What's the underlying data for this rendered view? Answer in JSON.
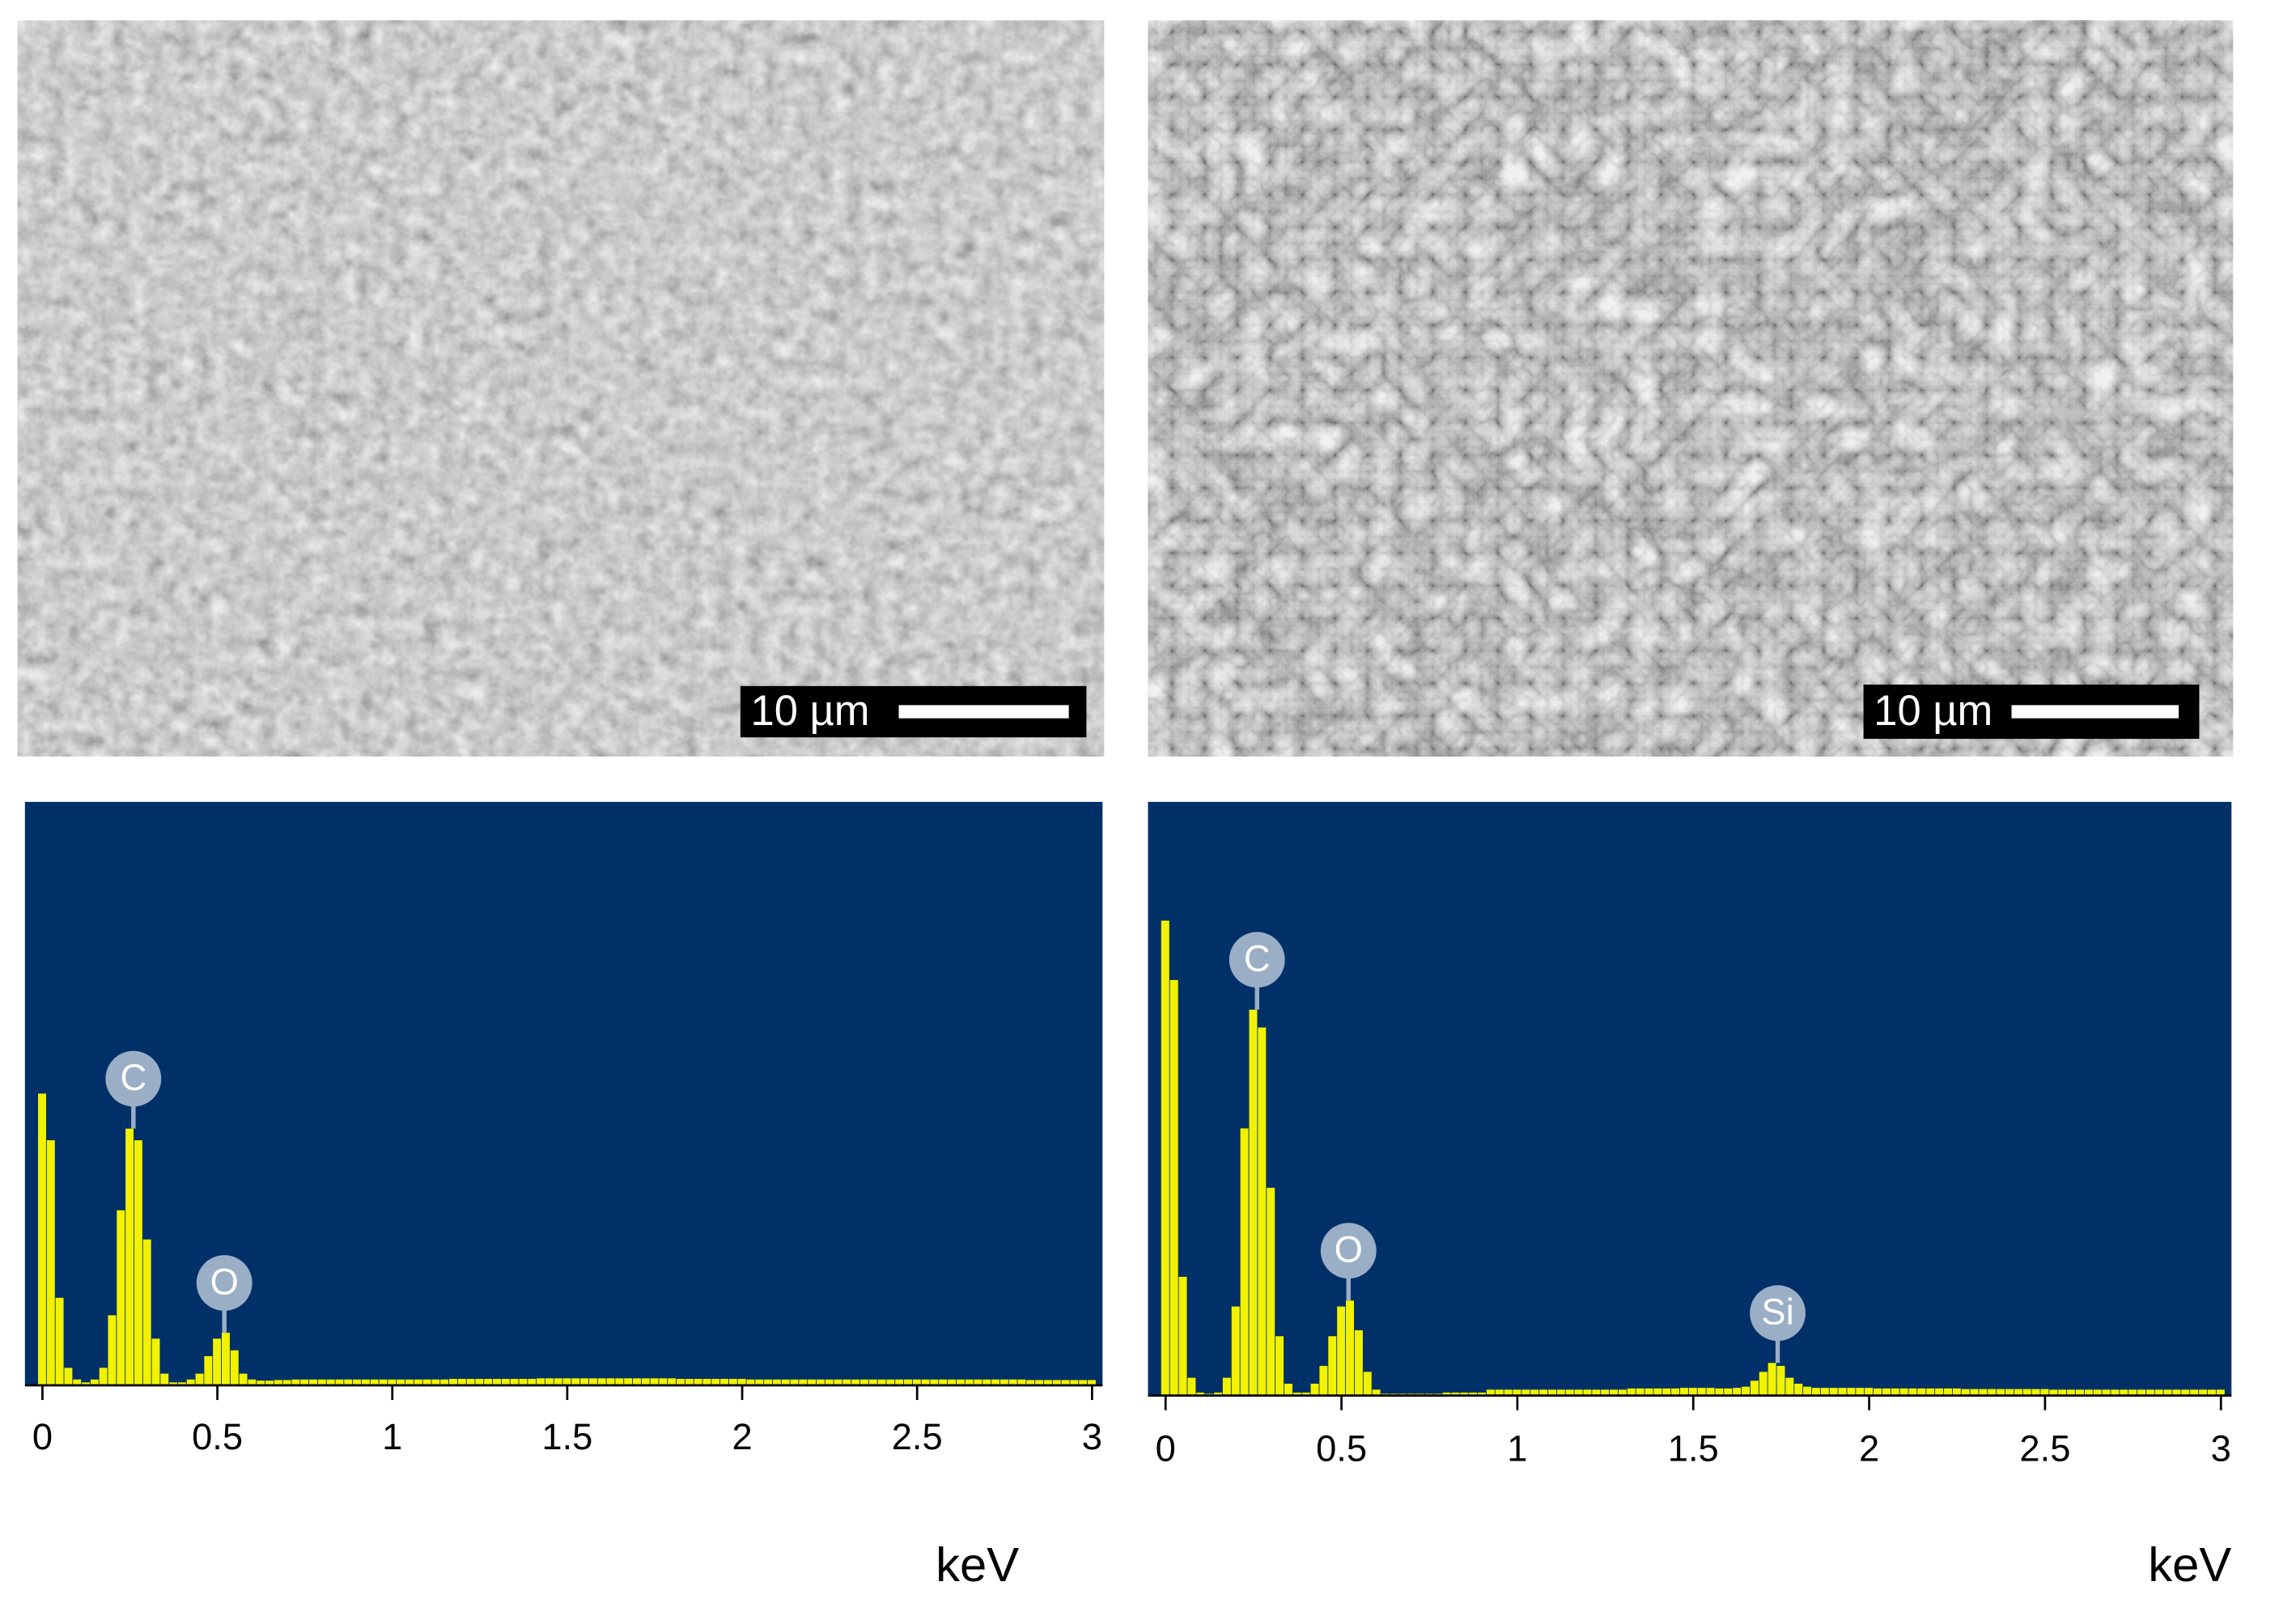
{
  "images": [
    {
      "scale_bar": "10 µm"
    },
    {
      "scale_bar": "10 µm"
    }
  ],
  "chart_data": [
    {
      "type": "bar",
      "x_label": "keV",
      "color": "#f2f200",
      "background": "#003068",
      "xlim": [
        -0.05,
        3.03
      ],
      "xticks": [
        0,
        0.5,
        1,
        1.5,
        2,
        2.5,
        3
      ],
      "ylim": [
        0,
        100
      ],
      "x": [
        0,
        0.025,
        0.05,
        0.075,
        0.1,
        0.125,
        0.15,
        0.175,
        0.2,
        0.225,
        0.25,
        0.275,
        0.3,
        0.325,
        0.35,
        0.375,
        0.4,
        0.425,
        0.45,
        0.475,
        0.5,
        0.525,
        0.55,
        0.575,
        0.6,
        0.625,
        0.65,
        0.675,
        0.7,
        0.725,
        0.75,
        0.775,
        0.8,
        0.825,
        0.85,
        0.875,
        0.9,
        0.925,
        0.95,
        0.975,
        1,
        1.025,
        1.05,
        1.075,
        1.1,
        1.125,
        1.15,
        1.175,
        1.2,
        1.225,
        1.25,
        1.275,
        1.3,
        1.325,
        1.35,
        1.375,
        1.4,
        1.425,
        1.45,
        1.475,
        1.5,
        1.525,
        1.55,
        1.575,
        1.6,
        1.625,
        1.65,
        1.675,
        1.7,
        1.725,
        1.75,
        1.775,
        1.8,
        1.825,
        1.85,
        1.875,
        1.9,
        1.925,
        1.95,
        1.975,
        2,
        2.025,
        2.05,
        2.075,
        2.1,
        2.125,
        2.15,
        2.175,
        2.2,
        2.225,
        2.25,
        2.275,
        2.3,
        2.325,
        2.35,
        2.375,
        2.4,
        2.425,
        2.45,
        2.475,
        2.5,
        2.525,
        2.55,
        2.575,
        2.6,
        2.625,
        2.65,
        2.675,
        2.7,
        2.725,
        2.75,
        2.775,
        2.8,
        2.825,
        2.85,
        2.875,
        2.9,
        2.925,
        2.95,
        2.975,
        3
      ],
      "values": [
        50,
        42,
        15,
        3,
        1,
        0.5,
        1,
        3,
        12,
        30,
        44,
        42,
        25,
        8,
        2,
        0.5,
        0.5,
        1,
        2,
        5,
        8,
        9,
        6,
        2,
        1,
        0.8,
        0.8,
        0.9,
        0.9,
        1,
        1,
        1,
        1,
        1,
        1,
        1,
        1,
        1,
        1,
        1,
        1,
        1,
        1,
        1,
        1,
        1,
        1,
        1.1,
        1.1,
        1.1,
        1.1,
        1.1,
        1.1,
        1.1,
        1.1,
        1.1,
        1.1,
        1.2,
        1.2,
        1.2,
        1.2,
        1.2,
        1.2,
        1.2,
        1.2,
        1.2,
        1.2,
        1.2,
        1.2,
        1.2,
        1.2,
        1.2,
        1.2,
        1.1,
        1.1,
        1.1,
        1.1,
        1.1,
        1.1,
        1.1,
        1.1,
        1,
        1,
        1,
        1,
        1,
        1,
        1,
        1,
        1,
        1,
        1,
        1,
        1,
        1,
        1,
        1,
        1,
        1,
        1,
        1,
        1,
        1,
        1,
        1,
        1,
        1,
        1,
        1,
        1,
        1,
        1,
        1,
        0.9,
        0.9,
        0.9,
        0.9,
        0.9,
        0.9,
        0.9,
        0.9
      ],
      "annotations": [
        {
          "text": "C",
          "x": 0.26
        },
        {
          "text": "O",
          "x": 0.52
        }
      ]
    },
    {
      "type": "bar",
      "x_label": "keV",
      "color": "#f2f200",
      "background": "#003068",
      "xlim": [
        -0.05,
        3.03
      ],
      "xticks": [
        0,
        0.5,
        1,
        1.5,
        2,
        2.5,
        3
      ],
      "ylim": [
        0,
        100
      ],
      "x": [
        0,
        0.025,
        0.05,
        0.075,
        0.1,
        0.125,
        0.15,
        0.175,
        0.2,
        0.225,
        0.25,
        0.275,
        0.3,
        0.325,
        0.35,
        0.375,
        0.4,
        0.425,
        0.45,
        0.475,
        0.5,
        0.525,
        0.55,
        0.575,
        0.6,
        0.625,
        0.65,
        0.675,
        0.7,
        0.725,
        0.75,
        0.775,
        0.8,
        0.825,
        0.85,
        0.875,
        0.9,
        0.925,
        0.95,
        0.975,
        1,
        1.025,
        1.05,
        1.075,
        1.1,
        1.125,
        1.15,
        1.175,
        1.2,
        1.225,
        1.25,
        1.275,
        1.3,
        1.325,
        1.35,
        1.375,
        1.4,
        1.425,
        1.45,
        1.475,
        1.5,
        1.525,
        1.55,
        1.575,
        1.6,
        1.625,
        1.65,
        1.675,
        1.7,
        1.725,
        1.75,
        1.775,
        1.8,
        1.825,
        1.85,
        1.875,
        1.9,
        1.925,
        1.95,
        1.975,
        2,
        2.025,
        2.05,
        2.075,
        2.1,
        2.125,
        2.15,
        2.175,
        2.2,
        2.225,
        2.25,
        2.275,
        2.3,
        2.325,
        2.35,
        2.375,
        2.4,
        2.425,
        2.45,
        2.475,
        2.5,
        2.525,
        2.55,
        2.575,
        2.6,
        2.625,
        2.65,
        2.675,
        2.7,
        2.725,
        2.75,
        2.775,
        2.8,
        2.825,
        2.85,
        2.875,
        2.9,
        2.925,
        2.95,
        2.975,
        3
      ],
      "values": [
        80,
        70,
        20,
        3,
        0.5,
        0.3,
        0.5,
        3,
        15,
        45,
        65,
        62,
        35,
        10,
        2,
        0.5,
        0.5,
        2,
        5,
        10,
        15,
        16,
        11,
        4,
        1,
        0.3,
        0.3,
        0.3,
        0.3,
        0.3,
        0.3,
        0.3,
        0.5,
        0.5,
        0.5,
        0.5,
        0.5,
        1,
        1,
        1,
        1,
        1,
        1,
        1,
        1,
        1,
        1,
        1,
        1,
        1,
        1,
        1,
        1,
        1.2,
        1.2,
        1.2,
        1.2,
        1.2,
        1.2,
        1.3,
        1.3,
        1.3,
        1.3,
        1.2,
        1.2,
        1.3,
        1.5,
        2.5,
        4,
        5.5,
        5,
        3,
        2,
        1.5,
        1.3,
        1.3,
        1.3,
        1.3,
        1.3,
        1.3,
        1.3,
        1.2,
        1.2,
        1.2,
        1.2,
        1.2,
        1.2,
        1.2,
        1.2,
        1.2,
        1.2,
        1.1,
        1.1,
        1.1,
        1.1,
        1.1,
        1.1,
        1.1,
        1.1,
        1.1,
        1.1,
        1,
        1,
        1,
        1,
        1,
        1,
        1,
        1,
        1,
        1,
        1,
        1,
        1,
        1,
        1,
        1,
        1,
        1,
        1,
        1
      ],
      "annotations": [
        {
          "text": "C",
          "x": 0.26
        },
        {
          "text": "O",
          "x": 0.52
        },
        {
          "text": "Si",
          "x": 1.74
        }
      ]
    }
  ]
}
